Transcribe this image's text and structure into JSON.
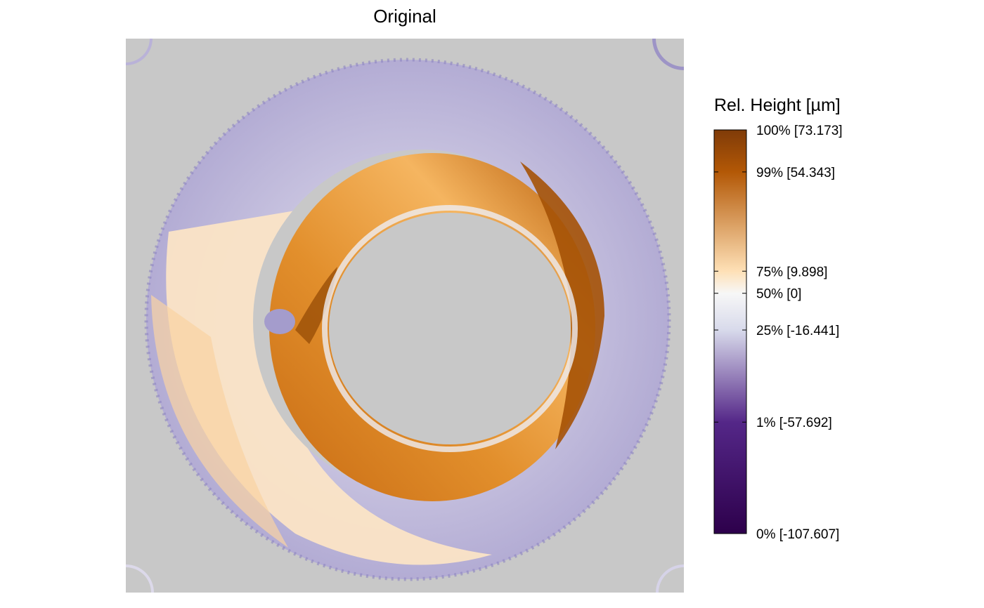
{
  "chart_data": {
    "type": "heatmap",
    "title": "Original",
    "description_free": true,
    "colorscale": {
      "title": "Rel. Height [µm]",
      "min": -107.607,
      "max": 73.173,
      "stops": [
        {
          "pct": 0,
          "value": -107.607,
          "label": "0% [-107.607]",
          "color": "#2d004b"
        },
        {
          "pct": 1,
          "value": -57.692,
          "label": "1% [-57.692]",
          "color": "#542788"
        },
        {
          "pct": 25,
          "value": -16.441,
          "label": "25% [-16.441]",
          "color": "#d8daeb"
        },
        {
          "pct": 50,
          "value": 0,
          "label": "50% [0]",
          "color": "#f7f7f7"
        },
        {
          "pct": 75,
          "value": 9.898,
          "label": "75% [9.898]",
          "color": "#fee0b6"
        },
        {
          "pct": 99,
          "value": 54.343,
          "label": "99% [54.343]",
          "color": "#b35806"
        },
        {
          "pct": 100,
          "value": 73.173,
          "label": "100% [73.173]",
          "color": "#7f3b08"
        }
      ]
    },
    "background_color": "#c8c8c8"
  }
}
